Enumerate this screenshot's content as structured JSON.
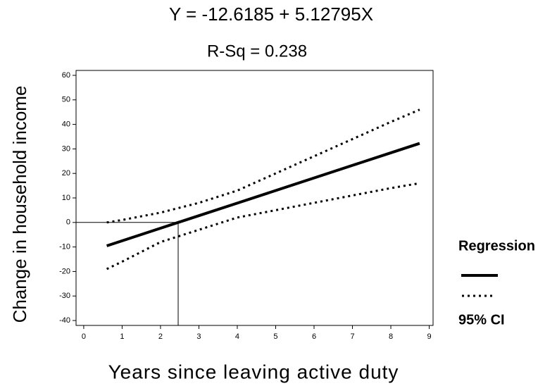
{
  "chart_data": {
    "type": "line",
    "title": "Y = -12.6185 + 5.12795X",
    "subtitle": "R-Sq = 0.238",
    "x_label": "Years since leaving active duty",
    "y_label": "Change in household income",
    "x": [
      0.6,
      1,
      2,
      3,
      4,
      5,
      6,
      7,
      8,
      8.75
    ],
    "series": [
      {
        "name": "Regression",
        "color": "#000000",
        "style": "solid",
        "values": [
          -9.54,
          -7.49,
          -2.36,
          2.77,
          7.89,
          13.02,
          18.15,
          23.28,
          28.41,
          32.25
        ]
      },
      {
        "name": "95% CI",
        "color": "#000000",
        "style": "dotted",
        "values": [
          0,
          1,
          4,
          8,
          13,
          20,
          27,
          34,
          41,
          46
        ],
        "lower": [
          -19,
          -16,
          -8,
          -3,
          2,
          5,
          8,
          11,
          14,
          16
        ]
      }
    ],
    "reference_point": {
      "x": 2.46,
      "y": 0
    },
    "xlim": [
      -0.2,
      9.1
    ],
    "ylim": [
      -42,
      62
    ],
    "xticks": [
      0,
      1,
      2,
      3,
      4,
      5,
      6,
      7,
      8,
      9
    ],
    "yticks": [
      -40,
      -30,
      -20,
      -10,
      0,
      10,
      20,
      30,
      40,
      50,
      60
    ],
    "legend": "right"
  }
}
